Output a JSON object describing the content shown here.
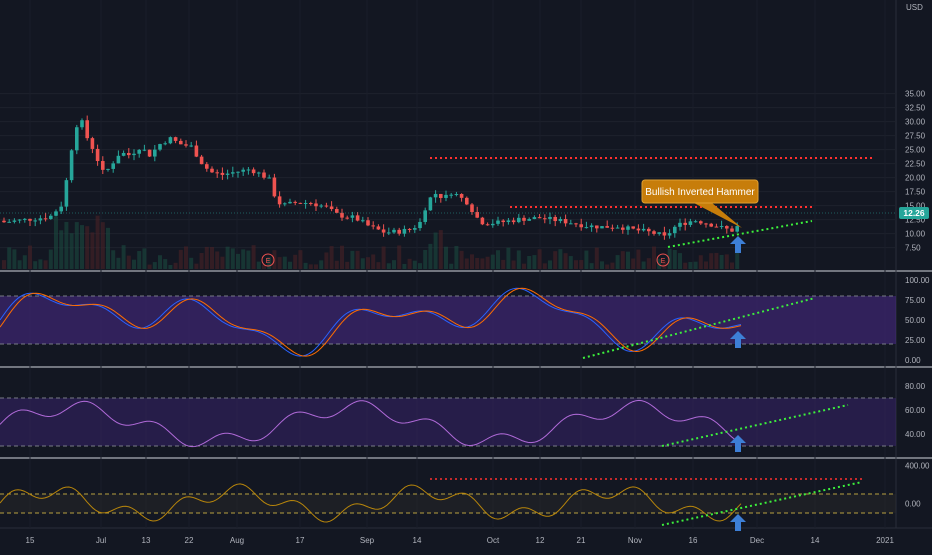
{
  "currency": "USD",
  "price_axis": {
    "ticks": [
      "35.00",
      "32.50",
      "30.00",
      "27.50",
      "25.00",
      "22.50",
      "20.00",
      "17.50",
      "15.00",
      "12.50",
      "10.00",
      "7.50"
    ],
    "current_price": "12.26"
  },
  "stoch_axis": {
    "ticks": [
      "100.00",
      "75.00",
      "50.00",
      "25.00",
      "0.00"
    ]
  },
  "rsi_axis": {
    "ticks": [
      "80.00",
      "60.00",
      "40.00"
    ]
  },
  "cci_axis": {
    "ticks": [
      "400.00",
      "0.00"
    ]
  },
  "time_axis": {
    "ticks": [
      "15",
      "Jul",
      "13",
      "22",
      "Aug",
      "17",
      "Sep",
      "14",
      "Oct",
      "12",
      "21",
      "Nov",
      "16",
      "Dec",
      "14",
      "2021"
    ]
  },
  "annotation": {
    "text": "Bullish Inverted Hammer"
  },
  "earnings_markers": [
    "E",
    "E"
  ],
  "colors": {
    "background": "#131722",
    "up": "#26a69a",
    "down": "#ef5350",
    "trend_support": "#3cf03c",
    "resistance": "#ff3030",
    "arrow": "#3d7fd6",
    "callout": "#c77d0a",
    "stoch_band": "#4a2a8a",
    "k_line": "#2962ff",
    "d_line": "#ff6d00"
  },
  "chart_data": {
    "type": "candlestick",
    "x": [
      "2020-06-15",
      "2020-06-30",
      "2020-07-13",
      "2020-07-22",
      "2020-08-04",
      "2020-08-17",
      "2020-09-01",
      "2020-09-14",
      "2020-10-01",
      "2020-10-12",
      "2020-10-21",
      "2020-11-02",
      "2020-11-16",
      "2020-11-24",
      "2020-12-01",
      "2020-12-14",
      "2021-01-01"
    ],
    "candles": [
      {
        "date": "2020-06-15",
        "close": 12.2
      },
      {
        "date": "2020-06-29",
        "close": 30.8
      },
      {
        "date": "2020-07-01",
        "close": 33.4
      },
      {
        "date": "2020-07-06",
        "close": 22.6
      },
      {
        "date": "2020-07-14",
        "close": 24.6
      },
      {
        "date": "2020-07-21",
        "close": 26.4
      },
      {
        "date": "2020-07-29",
        "close": 21.3
      },
      {
        "date": "2020-08-06",
        "close": 21.5
      },
      {
        "date": "2020-08-13",
        "close": 15.4
      },
      {
        "date": "2020-08-25",
        "close": 14.4
      },
      {
        "date": "2020-09-08",
        "close": 10.1
      },
      {
        "date": "2020-09-18",
        "close": 17.6
      },
      {
        "date": "2020-09-23",
        "close": 16.2
      },
      {
        "date": "2020-10-05",
        "close": 12.6
      },
      {
        "date": "2020-10-20",
        "close": 12.0
      },
      {
        "date": "2020-11-02",
        "close": 10.0
      },
      {
        "date": "2020-11-09",
        "close": 10.9
      },
      {
        "date": "2020-11-16",
        "close": 12.4
      },
      {
        "date": "2020-11-26",
        "close": 10.7
      },
      {
        "date": "2020-11-27",
        "close": 12.26
      }
    ],
    "resistance_levels": [
      18.7,
      13.1
    ],
    "support_trendline": [
      {
        "date": "2020-11-09",
        "value": 8.9
      },
      {
        "date": "2020-12-14",
        "value": 11.3
      }
    ],
    "stochastic": {
      "levels": [
        80,
        20
      ],
      "range": [
        0,
        100
      ]
    },
    "rsi": {
      "levels": [
        70,
        30
      ],
      "range": [
        25,
        85
      ]
    },
    "cci": {
      "levels": [
        100,
        -100
      ],
      "range": [
        -250,
        450
      ]
    }
  }
}
